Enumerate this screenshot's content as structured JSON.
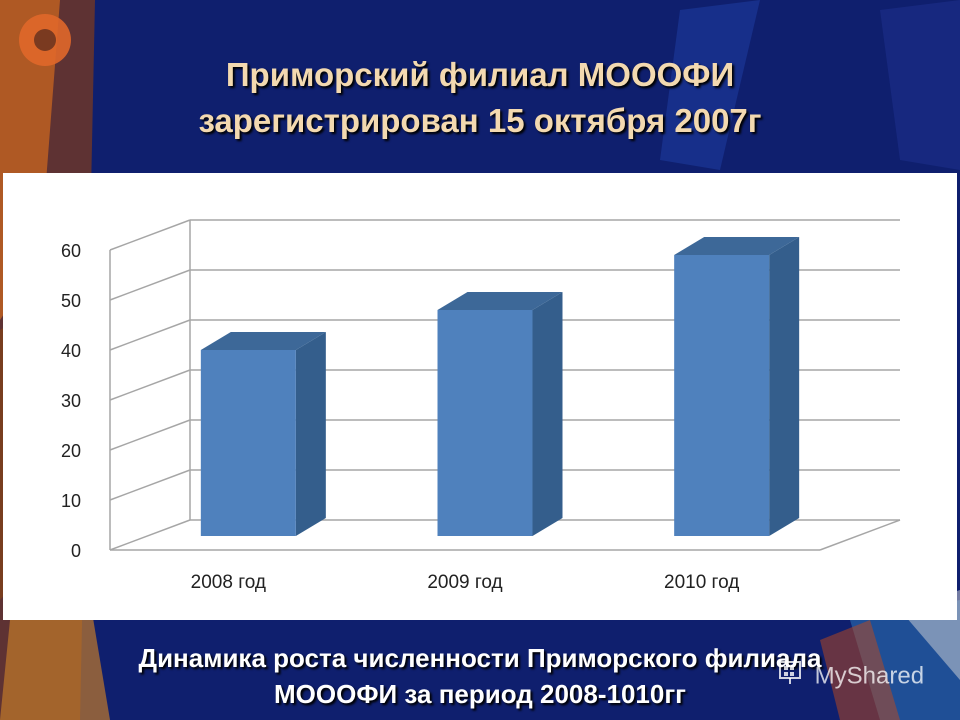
{
  "slide": {
    "title_line1": "Приморский филиал МОООФИ",
    "title_line2": "зарегистрирован 15 октября 2007г",
    "caption_line1": "Динамика роста численности Приморского филиала",
    "caption_line2": "МОООФИ за период 2008-1010гг"
  },
  "watermark": {
    "text": "MyShared",
    "icon": "myshared-logo-icon"
  },
  "colors": {
    "background": "#0f1f6e",
    "title": "#f3d9b0",
    "bar_front": "#4f81bd",
    "bar_side": "#345e8c",
    "bar_top": "#3d6898"
  },
  "chart_data": {
    "type": "bar",
    "style": "3d",
    "categories": [
      "2008 год",
      "2009 год",
      "2010 год"
    ],
    "values": [
      40,
      48,
      59
    ],
    "ylim": [
      0,
      60
    ],
    "yticks": [
      0,
      10,
      20,
      30,
      40,
      50,
      60
    ],
    "grid": true,
    "legend": "none",
    "title": "",
    "xlabel": "",
    "ylabel": ""
  }
}
